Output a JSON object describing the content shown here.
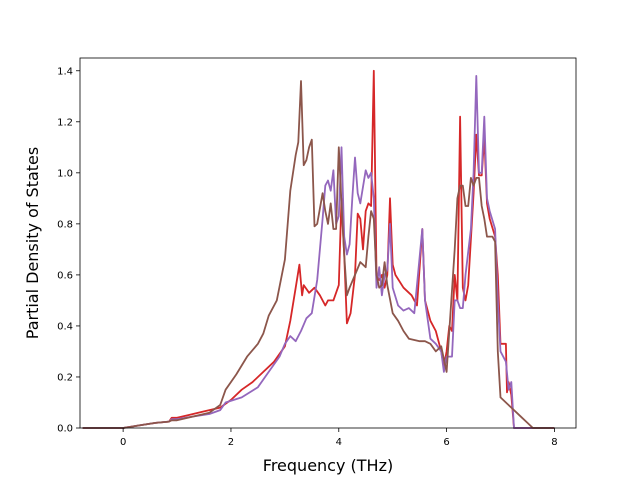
{
  "chart_data": {
    "type": "line",
    "title": "",
    "xlabel": "Frequency (THz)",
    "ylabel": "Partial Density of States",
    "xlim": [
      -0.8,
      8.4
    ],
    "ylim": [
      0.0,
      1.45
    ],
    "xticks": [
      0,
      2,
      4,
      6,
      8
    ],
    "yticks": [
      0.0,
      0.2,
      0.4,
      0.6,
      0.8,
      1.0,
      1.2,
      1.4
    ],
    "xtick_labels": [
      "0",
      "2",
      "4",
      "6",
      "8"
    ],
    "ytick_labels": [
      "0.0",
      "0.2",
      "0.4",
      "0.6",
      "0.8",
      "1.0",
      "1.2",
      "1.4"
    ],
    "grid": false,
    "legend": "none",
    "series": [
      {
        "color": "#d62728",
        "points": [
          [
            -0.75,
            0.0
          ],
          [
            0.0,
            0.0
          ],
          [
            0.3,
            0.01
          ],
          [
            0.6,
            0.02
          ],
          [
            0.85,
            0.025
          ],
          [
            0.9,
            0.04
          ],
          [
            1.0,
            0.04
          ],
          [
            1.2,
            0.05
          ],
          [
            1.5,
            0.065
          ],
          [
            1.8,
            0.08
          ],
          [
            2.0,
            0.11
          ],
          [
            2.2,
            0.15
          ],
          [
            2.4,
            0.18
          ],
          [
            2.6,
            0.22
          ],
          [
            2.8,
            0.26
          ],
          [
            3.0,
            0.32
          ],
          [
            3.1,
            0.42
          ],
          [
            3.2,
            0.55
          ],
          [
            3.27,
            0.64
          ],
          [
            3.32,
            0.52
          ],
          [
            3.35,
            0.56
          ],
          [
            3.45,
            0.53
          ],
          [
            3.55,
            0.55
          ],
          [
            3.65,
            0.52
          ],
          [
            3.75,
            0.48
          ],
          [
            3.8,
            0.5
          ],
          [
            3.9,
            0.5
          ],
          [
            4.0,
            0.56
          ],
          [
            4.05,
            0.9
          ],
          [
            4.1,
            0.68
          ],
          [
            4.15,
            0.41
          ],
          [
            4.22,
            0.45
          ],
          [
            4.3,
            0.6
          ],
          [
            4.35,
            0.84
          ],
          [
            4.4,
            0.82
          ],
          [
            4.45,
            0.7
          ],
          [
            4.5,
            0.85
          ],
          [
            4.55,
            0.88
          ],
          [
            4.6,
            0.87
          ],
          [
            4.65,
            1.4
          ],
          [
            4.7,
            0.6
          ],
          [
            4.75,
            0.58
          ],
          [
            4.8,
            0.6
          ],
          [
            4.85,
            0.55
          ],
          [
            4.9,
            0.6
          ],
          [
            4.95,
            0.9
          ],
          [
            5.0,
            0.64
          ],
          [
            5.05,
            0.6
          ],
          [
            5.2,
            0.55
          ],
          [
            5.35,
            0.52
          ],
          [
            5.45,
            0.48
          ],
          [
            5.55,
            0.78
          ],
          [
            5.6,
            0.5
          ],
          [
            5.7,
            0.42
          ],
          [
            5.8,
            0.38
          ],
          [
            5.9,
            0.3
          ],
          [
            5.95,
            0.24
          ],
          [
            6.0,
            0.3
          ],
          [
            6.05,
            0.4
          ],
          [
            6.1,
            0.38
          ],
          [
            6.15,
            0.6
          ],
          [
            6.2,
            0.5
          ],
          [
            6.25,
            1.22
          ],
          [
            6.3,
            0.55
          ],
          [
            6.35,
            0.5
          ],
          [
            6.4,
            0.56
          ],
          [
            6.5,
            0.92
          ],
          [
            6.55,
            1.15
          ],
          [
            6.6,
            0.99
          ],
          [
            6.65,
            0.99
          ],
          [
            6.7,
            1.14
          ],
          [
            6.75,
            0.88
          ],
          [
            6.8,
            0.82
          ],
          [
            6.9,
            0.75
          ],
          [
            6.95,
            0.6
          ],
          [
            7.0,
            0.33
          ],
          [
            7.1,
            0.33
          ],
          [
            7.12,
            0.14
          ],
          [
            7.15,
            0.18
          ],
          [
            7.2,
            0.13
          ],
          [
            7.25,
            0.0
          ],
          [
            8.0,
            0.0
          ]
        ]
      },
      {
        "color": "#9467bd",
        "points": [
          [
            -0.75,
            0.0
          ],
          [
            0.0,
            0.0
          ],
          [
            0.3,
            0.01
          ],
          [
            0.6,
            0.02
          ],
          [
            0.85,
            0.025
          ],
          [
            0.9,
            0.035
          ],
          [
            1.0,
            0.035
          ],
          [
            1.3,
            0.045
          ],
          [
            1.6,
            0.055
          ],
          [
            1.8,
            0.07
          ],
          [
            1.9,
            0.1
          ],
          [
            2.2,
            0.12
          ],
          [
            2.5,
            0.16
          ],
          [
            2.7,
            0.22
          ],
          [
            2.9,
            0.28
          ],
          [
            3.0,
            0.33
          ],
          [
            3.1,
            0.36
          ],
          [
            3.2,
            0.34
          ],
          [
            3.3,
            0.38
          ],
          [
            3.4,
            0.43
          ],
          [
            3.5,
            0.45
          ],
          [
            3.6,
            0.58
          ],
          [
            3.7,
            0.82
          ],
          [
            3.75,
            0.95
          ],
          [
            3.8,
            0.97
          ],
          [
            3.85,
            0.93
          ],
          [
            3.9,
            1.01
          ],
          [
            3.95,
            0.8
          ],
          [
            4.0,
            0.83
          ],
          [
            4.05,
            1.1
          ],
          [
            4.1,
            0.75
          ],
          [
            4.15,
            0.68
          ],
          [
            4.2,
            0.72
          ],
          [
            4.25,
            0.9
          ],
          [
            4.3,
            1.06
          ],
          [
            4.35,
            0.92
          ],
          [
            4.4,
            0.88
          ],
          [
            4.5,
            1.01
          ],
          [
            4.55,
            0.98
          ],
          [
            4.6,
            1.0
          ],
          [
            4.65,
            0.9
          ],
          [
            4.7,
            0.55
          ],
          [
            4.75,
            0.63
          ],
          [
            4.8,
            0.52
          ],
          [
            4.85,
            0.6
          ],
          [
            4.9,
            0.62
          ],
          [
            4.95,
            0.8
          ],
          [
            5.0,
            0.55
          ],
          [
            5.1,
            0.48
          ],
          [
            5.2,
            0.46
          ],
          [
            5.3,
            0.47
          ],
          [
            5.4,
            0.45
          ],
          [
            5.55,
            0.78
          ],
          [
            5.6,
            0.5
          ],
          [
            5.7,
            0.35
          ],
          [
            5.8,
            0.33
          ],
          [
            5.9,
            0.3
          ],
          [
            5.95,
            0.22
          ],
          [
            6.0,
            0.28
          ],
          [
            6.1,
            0.28
          ],
          [
            6.15,
            0.5
          ],
          [
            6.2,
            0.5
          ],
          [
            6.25,
            0.47
          ],
          [
            6.3,
            0.47
          ],
          [
            6.35,
            0.6
          ],
          [
            6.45,
            0.78
          ],
          [
            6.5,
            1.0
          ],
          [
            6.55,
            1.38
          ],
          [
            6.6,
            1.0
          ],
          [
            6.65,
            1.0
          ],
          [
            6.7,
            1.22
          ],
          [
            6.75,
            0.9
          ],
          [
            6.8,
            0.85
          ],
          [
            6.9,
            0.78
          ],
          [
            6.95,
            0.5
          ],
          [
            7.0,
            0.3
          ],
          [
            7.1,
            0.26
          ],
          [
            7.15,
            0.15
          ],
          [
            7.2,
            0.18
          ],
          [
            7.25,
            0.0
          ],
          [
            8.0,
            0.0
          ]
        ]
      },
      {
        "color": "#8c564b",
        "points": [
          [
            -0.75,
            0.0
          ],
          [
            0.0,
            0.0
          ],
          [
            0.3,
            0.01
          ],
          [
            0.6,
            0.02
          ],
          [
            0.85,
            0.025
          ],
          [
            0.9,
            0.03
          ],
          [
            1.0,
            0.03
          ],
          [
            1.3,
            0.045
          ],
          [
            1.6,
            0.06
          ],
          [
            1.8,
            0.09
          ],
          [
            1.9,
            0.15
          ],
          [
            2.1,
            0.21
          ],
          [
            2.3,
            0.28
          ],
          [
            2.5,
            0.33
          ],
          [
            2.6,
            0.37
          ],
          [
            2.7,
            0.44
          ],
          [
            2.85,
            0.5
          ],
          [
            3.0,
            0.66
          ],
          [
            3.1,
            0.93
          ],
          [
            3.2,
            1.07
          ],
          [
            3.25,
            1.12
          ],
          [
            3.3,
            1.36
          ],
          [
            3.35,
            1.03
          ],
          [
            3.4,
            1.05
          ],
          [
            3.45,
            1.1
          ],
          [
            3.5,
            1.13
          ],
          [
            3.55,
            0.79
          ],
          [
            3.6,
            0.8
          ],
          [
            3.7,
            0.92
          ],
          [
            3.75,
            0.85
          ],
          [
            3.8,
            0.8
          ],
          [
            3.85,
            0.88
          ],
          [
            3.9,
            0.78
          ],
          [
            3.95,
            0.78
          ],
          [
            4.0,
            1.1
          ],
          [
            4.05,
            0.88
          ],
          [
            4.1,
            0.68
          ],
          [
            4.15,
            0.52
          ],
          [
            4.2,
            0.55
          ],
          [
            4.3,
            0.6
          ],
          [
            4.4,
            0.65
          ],
          [
            4.5,
            0.63
          ],
          [
            4.55,
            0.75
          ],
          [
            4.6,
            0.85
          ],
          [
            4.65,
            0.82
          ],
          [
            4.7,
            0.6
          ],
          [
            4.75,
            0.55
          ],
          [
            4.8,
            0.56
          ],
          [
            4.85,
            0.65
          ],
          [
            4.9,
            0.56
          ],
          [
            5.0,
            0.45
          ],
          [
            5.1,
            0.42
          ],
          [
            5.2,
            0.38
          ],
          [
            5.3,
            0.35
          ],
          [
            5.5,
            0.34
          ],
          [
            5.6,
            0.34
          ],
          [
            5.7,
            0.33
          ],
          [
            5.8,
            0.3
          ],
          [
            5.9,
            0.32
          ],
          [
            6.0,
            0.22
          ],
          [
            6.05,
            0.38
          ],
          [
            6.15,
            0.7
          ],
          [
            6.2,
            0.9
          ],
          [
            6.25,
            0.95
          ],
          [
            6.3,
            0.95
          ],
          [
            6.35,
            0.87
          ],
          [
            6.4,
            0.87
          ],
          [
            6.45,
            0.98
          ],
          [
            6.5,
            0.95
          ],
          [
            6.55,
            0.98
          ],
          [
            6.6,
            0.98
          ],
          [
            6.65,
            0.87
          ],
          [
            6.7,
            0.82
          ],
          [
            6.75,
            0.75
          ],
          [
            6.85,
            0.75
          ],
          [
            6.9,
            0.73
          ],
          [
            6.92,
            0.55
          ],
          [
            6.95,
            0.3
          ],
          [
            7.0,
            0.12
          ],
          [
            7.1,
            0.1
          ],
          [
            7.2,
            0.08
          ],
          [
            7.3,
            0.06
          ],
          [
            7.4,
            0.04
          ],
          [
            7.5,
            0.02
          ],
          [
            7.6,
            0.0
          ],
          [
            8.0,
            0.0
          ]
        ]
      }
    ]
  }
}
